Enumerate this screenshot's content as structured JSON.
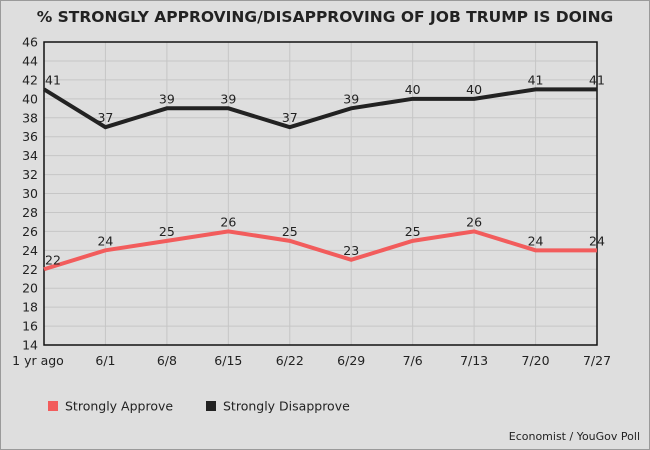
{
  "chart_data": {
    "type": "line",
    "title": "% STRONGLY APPROVING/DISAPPROVING OF JOB TRUMP IS DOING",
    "categories": [
      "1 yr ago",
      "6/1",
      "6/8",
      "6/15",
      "6/22",
      "6/29",
      "7/6",
      "7/13",
      "7/20",
      "7/27"
    ],
    "series": [
      {
        "name": "Strongly Approve",
        "color": "#f25c5c",
        "values": [
          22,
          24,
          25,
          26,
          25,
          23,
          25,
          26,
          24,
          24
        ]
      },
      {
        "name": "Strongly Disapprove",
        "color": "#222222",
        "values": [
          41,
          37,
          39,
          39,
          37,
          39,
          40,
          40,
          41,
          41
        ]
      }
    ],
    "ylim": [
      14,
      46
    ],
    "yticks": [
      14,
      16,
      18,
      20,
      22,
      24,
      26,
      28,
      30,
      32,
      34,
      36,
      38,
      40,
      42,
      44,
      46
    ],
    "grid": true,
    "legend": "bottom-left",
    "source": "Economist / YouGov Poll"
  }
}
